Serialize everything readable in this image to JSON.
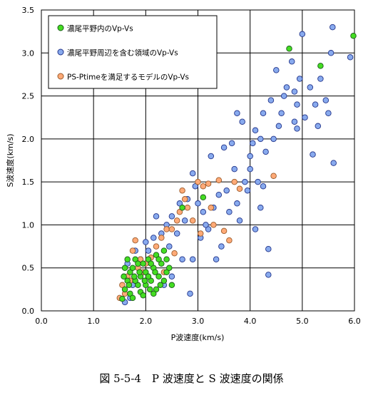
{
  "chart_data": {
    "type": "scatter",
    "xlabel": "P波速度(km/s)",
    "ylabel": "S波速度(km/s)",
    "xlim": [
      0,
      6
    ],
    "ylim": [
      0,
      3.5
    ],
    "xticks": [
      "0.0",
      "1.0",
      "2.0",
      "3.0",
      "4.0",
      "5.0",
      "6.0"
    ],
    "yticks": [
      "0.0",
      "0.5",
      "1.0",
      "1.5",
      "2.0",
      "2.5",
      "3.0",
      "3.5"
    ],
    "grid": true,
    "legend_position": "top-left",
    "series": [
      {
        "name": "濃尾平野内のVp-Vs",
        "color": "#44dd22",
        "points": [
          [
            1.55,
            0.14
          ],
          [
            1.6,
            0.25
          ],
          [
            1.65,
            0.35
          ],
          [
            1.7,
            0.45
          ],
          [
            1.75,
            0.5
          ],
          [
            1.8,
            0.6
          ],
          [
            1.85,
            0.3
          ],
          [
            1.9,
            0.4
          ],
          [
            1.95,
            0.55
          ],
          [
            2.0,
            0.45
          ],
          [
            2.05,
            0.6
          ],
          [
            2.1,
            0.35
          ],
          [
            2.15,
            0.5
          ],
          [
            2.2,
            0.65
          ],
          [
            2.25,
            0.4
          ],
          [
            2.3,
            0.55
          ],
          [
            2.35,
            0.7
          ],
          [
            2.4,
            0.45
          ],
          [
            2.5,
            0.3
          ],
          [
            1.6,
            0.5
          ],
          [
            1.7,
            0.2
          ],
          [
            1.8,
            0.35
          ],
          [
            1.9,
            0.22
          ],
          [
            2.0,
            0.3
          ],
          [
            2.1,
            0.55
          ],
          [
            2.2,
            0.25
          ],
          [
            1.65,
            0.6
          ],
          [
            1.75,
            0.15
          ],
          [
            1.85,
            0.55
          ],
          [
            1.95,
            0.18
          ],
          [
            2.05,
            0.4
          ],
          [
            2.15,
            0.2
          ],
          [
            2.25,
            0.6
          ],
          [
            2.35,
            0.35
          ],
          [
            2.45,
            0.5
          ],
          [
            1.58,
            0.4
          ],
          [
            1.68,
            0.3
          ],
          [
            1.78,
            0.4
          ],
          [
            1.88,
            0.45
          ],
          [
            1.98,
            0.35
          ],
          [
            2.08,
            0.25
          ],
          [
            2.18,
            0.45
          ],
          [
            2.28,
            0.3
          ],
          [
            2.4,
            0.6
          ],
          [
            2.7,
            1.2
          ],
          [
            3.1,
            1.32
          ],
          [
            4.75,
            3.05
          ],
          [
            5.35,
            2.85
          ],
          [
            5.98,
            3.2
          ]
        ]
      },
      {
        "name": "濃尾平野周辺を含む領域のVp-Vs",
        "color": "#88aaee",
        "points": [
          [
            1.6,
            0.1
          ],
          [
            1.7,
            0.15
          ],
          [
            1.75,
            0.3
          ],
          [
            1.8,
            0.7
          ],
          [
            1.9,
            0.6
          ],
          [
            2.0,
            0.8
          ],
          [
            2.05,
            0.7
          ],
          [
            2.15,
            0.85
          ],
          [
            2.3,
            0.9
          ],
          [
            2.4,
            1.0
          ],
          [
            2.5,
            1.1
          ],
          [
            2.5,
            0.4
          ],
          [
            2.6,
            0.9
          ],
          [
            2.7,
            0.6
          ],
          [
            2.75,
            1.05
          ],
          [
            2.8,
            1.3
          ],
          [
            2.9,
            1.6
          ],
          [
            2.9,
            0.6
          ],
          [
            3.0,
            1.25
          ],
          [
            3.05,
            0.85
          ],
          [
            3.1,
            1.15
          ],
          [
            3.2,
            0.95
          ],
          [
            3.25,
            1.8
          ],
          [
            3.3,
            1.2
          ],
          [
            3.35,
            0.6
          ],
          [
            3.4,
            1.35
          ],
          [
            3.5,
            1.9
          ],
          [
            3.55,
            1.4
          ],
          [
            3.6,
            1.15
          ],
          [
            3.7,
            1.65
          ],
          [
            3.75,
            1.25
          ],
          [
            3.8,
            1.05
          ],
          [
            3.85,
            2.2
          ],
          [
            3.9,
            1.5
          ],
          [
            3.95,
            1.4
          ],
          [
            4.0,
            1.8
          ],
          [
            4.05,
            1.95
          ],
          [
            4.1,
            2.1
          ],
          [
            4.15,
            1.5
          ],
          [
            4.2,
            1.2
          ],
          [
            4.25,
            2.3
          ],
          [
            4.3,
            1.85
          ],
          [
            4.35,
            0.42
          ],
          [
            4.35,
            0.72
          ],
          [
            4.4,
            2.45
          ],
          [
            4.45,
            2.0
          ],
          [
            4.5,
            2.8
          ],
          [
            4.6,
            2.3
          ],
          [
            4.65,
            2.5
          ],
          [
            4.7,
            2.6
          ],
          [
            4.8,
            2.9
          ],
          [
            4.9,
            2.4
          ],
          [
            4.95,
            2.7
          ],
          [
            5.0,
            3.22
          ],
          [
            5.05,
            2.25
          ],
          [
            5.15,
            2.6
          ],
          [
            5.2,
            1.82
          ],
          [
            5.3,
            2.15
          ],
          [
            5.35,
            2.7
          ],
          [
            5.45,
            2.45
          ],
          [
            5.5,
            2.3
          ],
          [
            5.55,
            3.0
          ],
          [
            5.58,
            3.3
          ],
          [
            5.6,
            1.72
          ],
          [
            5.92,
            2.95
          ],
          [
            1.65,
            0.55
          ],
          [
            1.85,
            0.5
          ],
          [
            2.2,
            1.1
          ],
          [
            2.35,
            0.3
          ],
          [
            2.45,
            0.75
          ],
          [
            2.65,
            1.25
          ],
          [
            2.85,
            0.2
          ],
          [
            2.95,
            1.45
          ],
          [
            3.15,
            1.0
          ],
          [
            3.45,
            0.75
          ],
          [
            3.65,
            1.95
          ],
          [
            3.75,
            2.3
          ],
          [
            4.0,
            1.65
          ],
          [
            4.1,
            0.95
          ],
          [
            4.25,
            1.45
          ],
          [
            4.55,
            2.15
          ],
          [
            4.85,
            2.55
          ],
          [
            4.2,
            2.0
          ],
          [
            4.85,
            2.2
          ],
          [
            5.25,
            2.4
          ],
          [
            4.9,
            2.12
          ]
        ]
      },
      {
        "name": "PS-Ptimeを満足するモデルのVp-Vs",
        "color": "#ffaa77",
        "points": [
          [
            1.5,
            0.15
          ],
          [
            1.55,
            0.3
          ],
          [
            1.6,
            0.2
          ],
          [
            1.65,
            0.4
          ],
          [
            1.7,
            0.35
          ],
          [
            1.75,
            0.7
          ],
          [
            1.8,
            0.82
          ],
          [
            1.85,
            0.5
          ],
          [
            1.9,
            0.6
          ],
          [
            1.95,
            0.45
          ],
          [
            2.0,
            0.55
          ],
          [
            2.1,
            0.62
          ],
          [
            2.2,
            0.75
          ],
          [
            2.3,
            0.85
          ],
          [
            2.4,
            0.95
          ],
          [
            2.55,
            0.67
          ],
          [
            2.6,
            1.05
          ],
          [
            2.7,
            1.4
          ],
          [
            2.75,
            1.3
          ],
          [
            2.8,
            1.2
          ],
          [
            2.9,
            1.05
          ],
          [
            3.0,
            1.5
          ],
          [
            3.1,
            1.45
          ],
          [
            3.2,
            1.48
          ],
          [
            3.3,
            1.0
          ],
          [
            3.4,
            1.52
          ],
          [
            3.5,
            0.93
          ],
          [
            3.6,
            0.82
          ],
          [
            3.7,
            1.5
          ],
          [
            3.8,
            1.42
          ],
          [
            4.45,
            1.57
          ],
          [
            2.5,
            0.95
          ],
          [
            2.65,
            1.15
          ],
          [
            3.05,
            0.9
          ],
          [
            3.25,
            1.2
          ],
          [
            2.35,
            0.45
          ]
        ]
      }
    ]
  },
  "caption": "図 5-5-4　P 波速度と S 波速度の関係"
}
